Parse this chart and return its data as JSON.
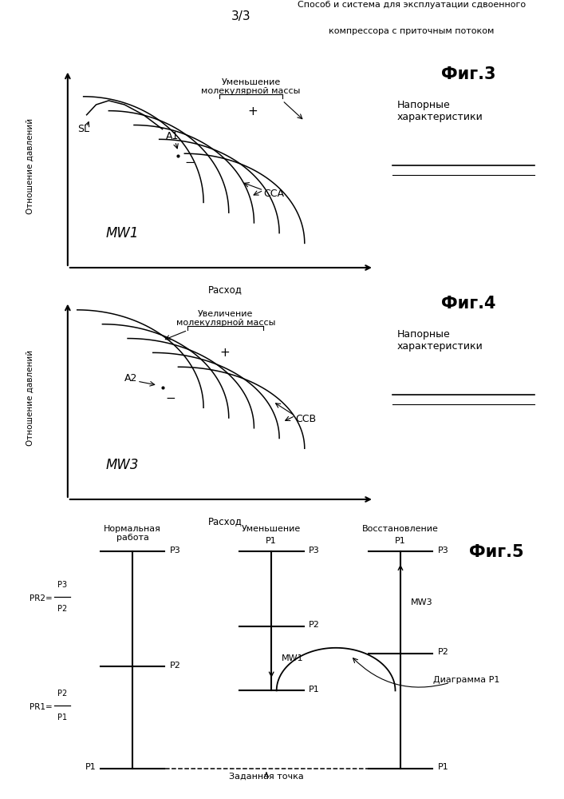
{
  "title_line1": "Способ и система для эксплуатации сдвоенного",
  "title_line2": "компрессора с приточным потоком",
  "page_label": "3/3",
  "fig3_label": "Фиг.3",
  "fig4_label": "Фиг.4",
  "fig5_label": "Фиг.5",
  "fig3_ylabel": "Отношение давлений",
  "fig3_xlabel": "Расход",
  "fig3_mol_text": "Уменьшение\nмолекулярной массы",
  "fig3_napor": "Напорные\nхарактеристики",
  "fig3_SL": "SL",
  "fig3_A1": "A1",
  "fig3_plus": "+",
  "fig3_minus": "−",
  "fig3_CCA": "CCA",
  "fig3_MW": "MW1",
  "fig4_ylabel": "Отношение давлений",
  "fig4_xlabel": "Расход",
  "fig4_mol_text": "Увеличение\nмолекулярной массы",
  "fig4_napor": "Напорные\nхарактеристики",
  "fig4_A2": "A2",
  "fig4_plus": "+",
  "fig4_minus": "−",
  "fig4_CCB": "CCB",
  "fig4_MW": "MW3",
  "fig5_normal": "Нормальная\nработа",
  "fig5_decrease": "Уменьшение",
  "fig5_restore": "Восстановление",
  "fig5_PR2_label": "PR2=",
  "fig5_PR2_top": "P3",
  "fig5_PR2_bot": "P2",
  "fig5_PR1_label": "PR1=",
  "fig5_PR1_top": "P2",
  "fig5_PR1_bot": "P1",
  "fig5_diagram": "Диаграмма P1",
  "fig5_setpoint": "Заданная точка",
  "fig5_MW1": "MW1",
  "fig5_MW3": "MW3",
  "bg_color": "#ffffff"
}
